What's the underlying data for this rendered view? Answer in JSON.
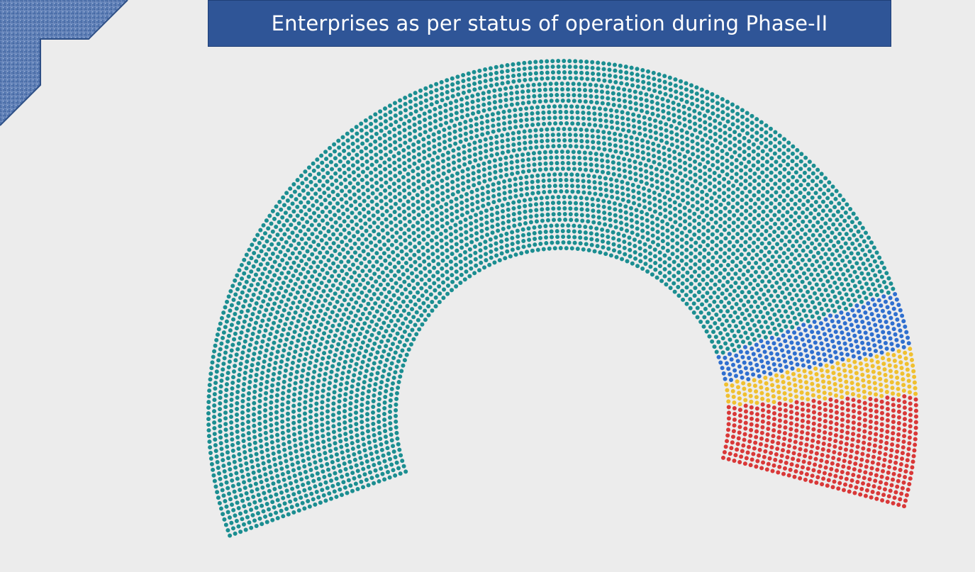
{
  "title": "Enterprises as per status of operation during Phase-II",
  "colors": {
    "background": "#ececec",
    "title_bg": "#2f5597",
    "title_text": "#ffffff",
    "ornament": "#4a6fae"
  },
  "icons": {
    "corner": "textured-corner-ornament"
  },
  "chart_data": {
    "type": "parliament",
    "title": "Enterprises as per status of operation during Phase-II",
    "legend": false,
    "grid": false,
    "arc_start_deg": 200,
    "arc_end_deg": -15,
    "series": [
      {
        "share": 0.835,
        "color": "#1b8e91"
      },
      {
        "share": 0.045,
        "color": "#2f6fcf"
      },
      {
        "share": 0.035,
        "color": "#f0c030"
      },
      {
        "share": 0.085,
        "color": "#d93838"
      }
    ]
  }
}
